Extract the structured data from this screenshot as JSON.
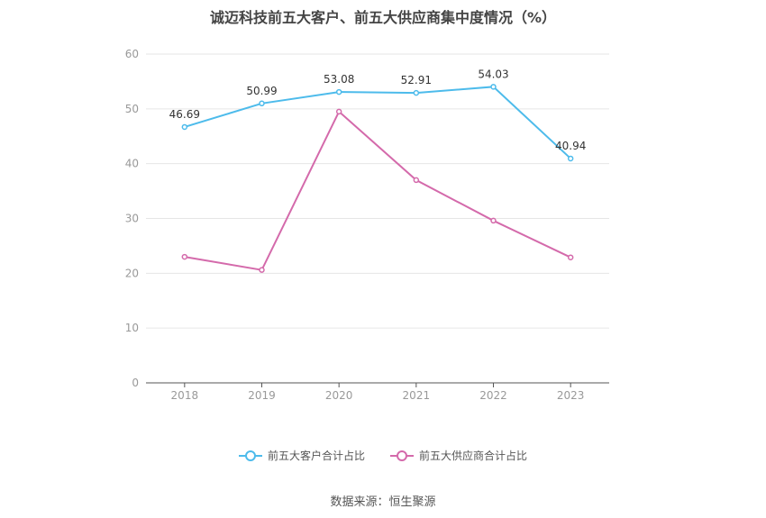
{
  "chart_data": {
    "type": "line",
    "title": "诚迈科技前五大客户、前五大供应商集中度情况（%）",
    "categories": [
      "2018",
      "2019",
      "2020",
      "2021",
      "2022",
      "2023"
    ],
    "series": [
      {
        "name": "前五大客户合计占比",
        "color": "#4dbbeb",
        "values": [
          46.69,
          50.99,
          53.08,
          52.91,
          54.03,
          40.94
        ],
        "show_labels": true
      },
      {
        "name": "前五大供应商合计占比",
        "color": "#d46aab",
        "values": [
          23.0,
          20.6,
          49.5,
          37.0,
          29.6,
          22.9
        ],
        "show_labels": false
      }
    ],
    "ylim": [
      0,
      60
    ],
    "yticks": [
      0,
      10,
      20,
      30,
      40,
      50,
      60
    ],
    "grid": true,
    "legend_position": "bottom"
  },
  "source": "数据来源：恒生聚源"
}
